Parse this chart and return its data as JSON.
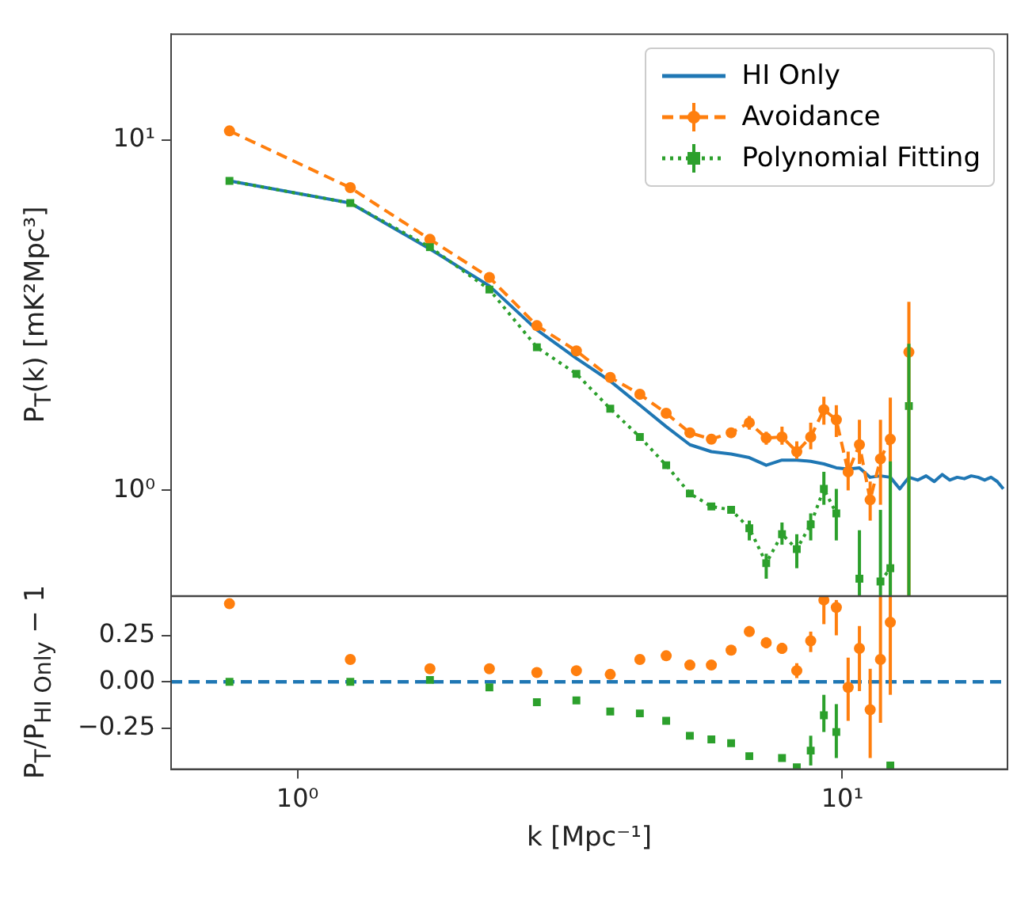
{
  "chart_data": [
    {
      "type": "line",
      "ylabel": "P$_{T}$(k) [mK²Mpc³]",
      "log": "xy",
      "legend": "top right",
      "tick_labels": "y",
      "xlim": [
        0.586,
        20.1
      ],
      "ylim": [
        0.5,
        20
      ],
      "yticks": [
        {
          "value": 1,
          "label": "10⁰"
        },
        {
          "value": 10,
          "label": "10¹"
        }
      ],
      "x": [
        0.75,
        1.25,
        1.75,
        2.25,
        2.75,
        3.25,
        3.75,
        4.25,
        4.75,
        5.25,
        5.75,
        6.25,
        6.75,
        7.25,
        7.75,
        8.25,
        8.75,
        9.25,
        9.75,
        10.25,
        10.75,
        11.25,
        11.75,
        12.25,
        12.75,
        13.25
      ],
      "series": [
        {
          "name": "HI Only",
          "color": "#1f77b4",
          "marker": "none",
          "line_style": "solid",
          "x": [
            0.75,
            1.25,
            1.75,
            2.25,
            2.75,
            3.25,
            3.75,
            4.25,
            4.75,
            5.25,
            5.75,
            6.25,
            6.75,
            7.25,
            7.75,
            8.25,
            8.75,
            9.25,
            9.75,
            10.25,
            10.75,
            11.25,
            11.75,
            12.25,
            12.75,
            13.25,
            13.75,
            14.25,
            14.75,
            15.25,
            15.75,
            16.25,
            16.75,
            17.25,
            17.75,
            18.25,
            18.75,
            19.25,
            19.75
          ],
          "values": [
            7.63,
            6.6,
            4.88,
            3.83,
            2.87,
            2.38,
            2.05,
            1.75,
            1.52,
            1.35,
            1.29,
            1.27,
            1.24,
            1.18,
            1.22,
            1.22,
            1.21,
            1.19,
            1.16,
            1.15,
            1.16,
            1.09,
            1.1,
            1.09,
            1.01,
            1.09,
            1.07,
            1.1,
            1.06,
            1.11,
            1.07,
            1.09,
            1.08,
            1.1,
            1.09,
            1.07,
            1.09,
            1.06,
            1.01
          ]
        },
        {
          "name": "Avoidance",
          "color": "#ff7f0e",
          "marker": "circle",
          "line_style": "dashed",
          "values": [
            10.6,
            7.3,
            5.2,
            4.05,
            2.95,
            2.5,
            2.1,
            1.88,
            1.66,
            1.46,
            1.4,
            1.46,
            1.56,
            1.41,
            1.42,
            1.29,
            1.42,
            1.7,
            1.59,
            1.13,
            1.35,
            0.94,
            1.23,
            1.4,
            null,
            2.48
          ],
          "errors": [
            null,
            null,
            null,
            null,
            null,
            null,
            null,
            null,
            null,
            null,
            null,
            null,
            [
              1.49,
              1.63
            ],
            [
              1.35,
              1.47
            ],
            [
              1.35,
              1.52
            ],
            [
              1.23,
              1.38
            ],
            [
              1.31,
              1.56
            ],
            [
              1.54,
              1.85
            ],
            [
              1.42,
              1.75
            ],
            [
              1.0,
              1.29
            ],
            [
              1.19,
              1.59
            ],
            [
              0.82,
              1.06
            ],
            [
              0.91,
              1.59
            ],
            [
              0.5,
              1.84
            ],
            null,
            [
              0.5,
              3.45
            ]
          ]
        },
        {
          "name": "Polynomial Fitting",
          "color": "#2ca02c",
          "marker": "square",
          "line_style": "dotted",
          "values": [
            7.63,
            6.6,
            4.94,
            3.74,
            2.56,
            2.15,
            1.71,
            1.42,
            1.18,
            0.98,
            0.9,
            0.88,
            0.78,
            0.62,
            0.75,
            0.68,
            0.8,
            1.01,
            0.86,
            null,
            0.56,
            null,
            0.55,
            0.6,
            null,
            1.74
          ],
          "errors": [
            null,
            null,
            null,
            null,
            null,
            null,
            null,
            null,
            null,
            null,
            null,
            null,
            [
              0.72,
              0.82
            ],
            [
              0.56,
              0.66
            ],
            [
              0.7,
              0.81
            ],
            [
              0.6,
              0.75
            ],
            [
              0.72,
              0.86
            ],
            [
              0.91,
              1.13
            ],
            [
              0.72,
              1.01
            ],
            null,
            [
              0.5,
              0.77
            ],
            null,
            [
              0.5,
              0.88
            ],
            [
              0.5,
              1.21
            ],
            null,
            [
              0.5,
              2.62
            ]
          ]
        }
      ]
    },
    {
      "type": "scatter",
      "xlabel": "k [Mpc⁻¹]",
      "ylabel": "P$_{T}$/P$_{HI Only}$ − 1",
      "log": "x",
      "xlim": [
        0.586,
        20.1
      ],
      "ylim": [
        -0.47,
        0.46
      ],
      "xticks": [
        {
          "value": 1,
          "label": "10⁰"
        },
        {
          "value": 10,
          "label": "10¹"
        }
      ],
      "yticks": [
        {
          "value": -0.25,
          "label": "−0.25"
        },
        {
          "value": 0,
          "label": "0.00"
        },
        {
          "value": 0.25,
          "label": "0.25"
        }
      ],
      "x": [
        0.75,
        1.25,
        1.75,
        2.25,
        2.75,
        3.25,
        3.75,
        4.25,
        4.75,
        5.25,
        5.75,
        6.25,
        6.75,
        7.25,
        7.75,
        8.25,
        8.75,
        9.25,
        9.75,
        10.25,
        10.75,
        11.25,
        11.75,
        12.25
      ],
      "ref_lines": [
        {
          "axis": "y",
          "value": 0,
          "color": "#1f77b4",
          "line_style": "dashed"
        }
      ],
      "series": [
        {
          "color": "#ff7f0e",
          "marker": "circle",
          "values": [
            0.42,
            0.12,
            0.07,
            0.07,
            0.05,
            0.06,
            0.04,
            0.12,
            0.14,
            0.09,
            0.09,
            0.17,
            0.27,
            0.21,
            0.18,
            0.06,
            0.22,
            0.44,
            0.4,
            -0.03,
            0.18,
            -0.15,
            0.12,
            0.32
          ],
          "errors": [
            null,
            null,
            null,
            null,
            null,
            null,
            null,
            null,
            null,
            null,
            null,
            null,
            [
              0.25,
              0.3
            ],
            [
              0.18,
              0.24
            ],
            [
              0.15,
              0.21
            ],
            [
              0.02,
              0.1
            ],
            [
              0.16,
              0.27
            ],
            [
              0.31,
              0.46
            ],
            [
              0.25,
              0.44
            ],
            [
              -0.21,
              0.13
            ],
            [
              -0.05,
              0.3
            ],
            [
              -0.41,
              0.07
            ],
            [
              -0.22,
              0.46
            ],
            [
              -0.07,
              0.46
            ]
          ]
        },
        {
          "color": "#2ca02c",
          "marker": "square",
          "values": [
            0,
            0,
            0.01,
            -0.03,
            -0.11,
            -0.1,
            -0.16,
            -0.17,
            -0.21,
            -0.29,
            -0.31,
            -0.33,
            -0.4,
            null,
            -0.41,
            -0.46,
            -0.37,
            -0.18,
            -0.27,
            null,
            null,
            null,
            null,
            -0.45
          ],
          "errors": [
            null,
            null,
            null,
            null,
            null,
            null,
            null,
            null,
            null,
            null,
            null,
            null,
            null,
            null,
            null,
            null,
            [
              -0.45,
              -0.29
            ],
            [
              -0.27,
              -0.07
            ],
            [
              -0.41,
              -0.12
            ],
            null,
            null,
            null,
            null,
            null
          ]
        }
      ]
    }
  ]
}
